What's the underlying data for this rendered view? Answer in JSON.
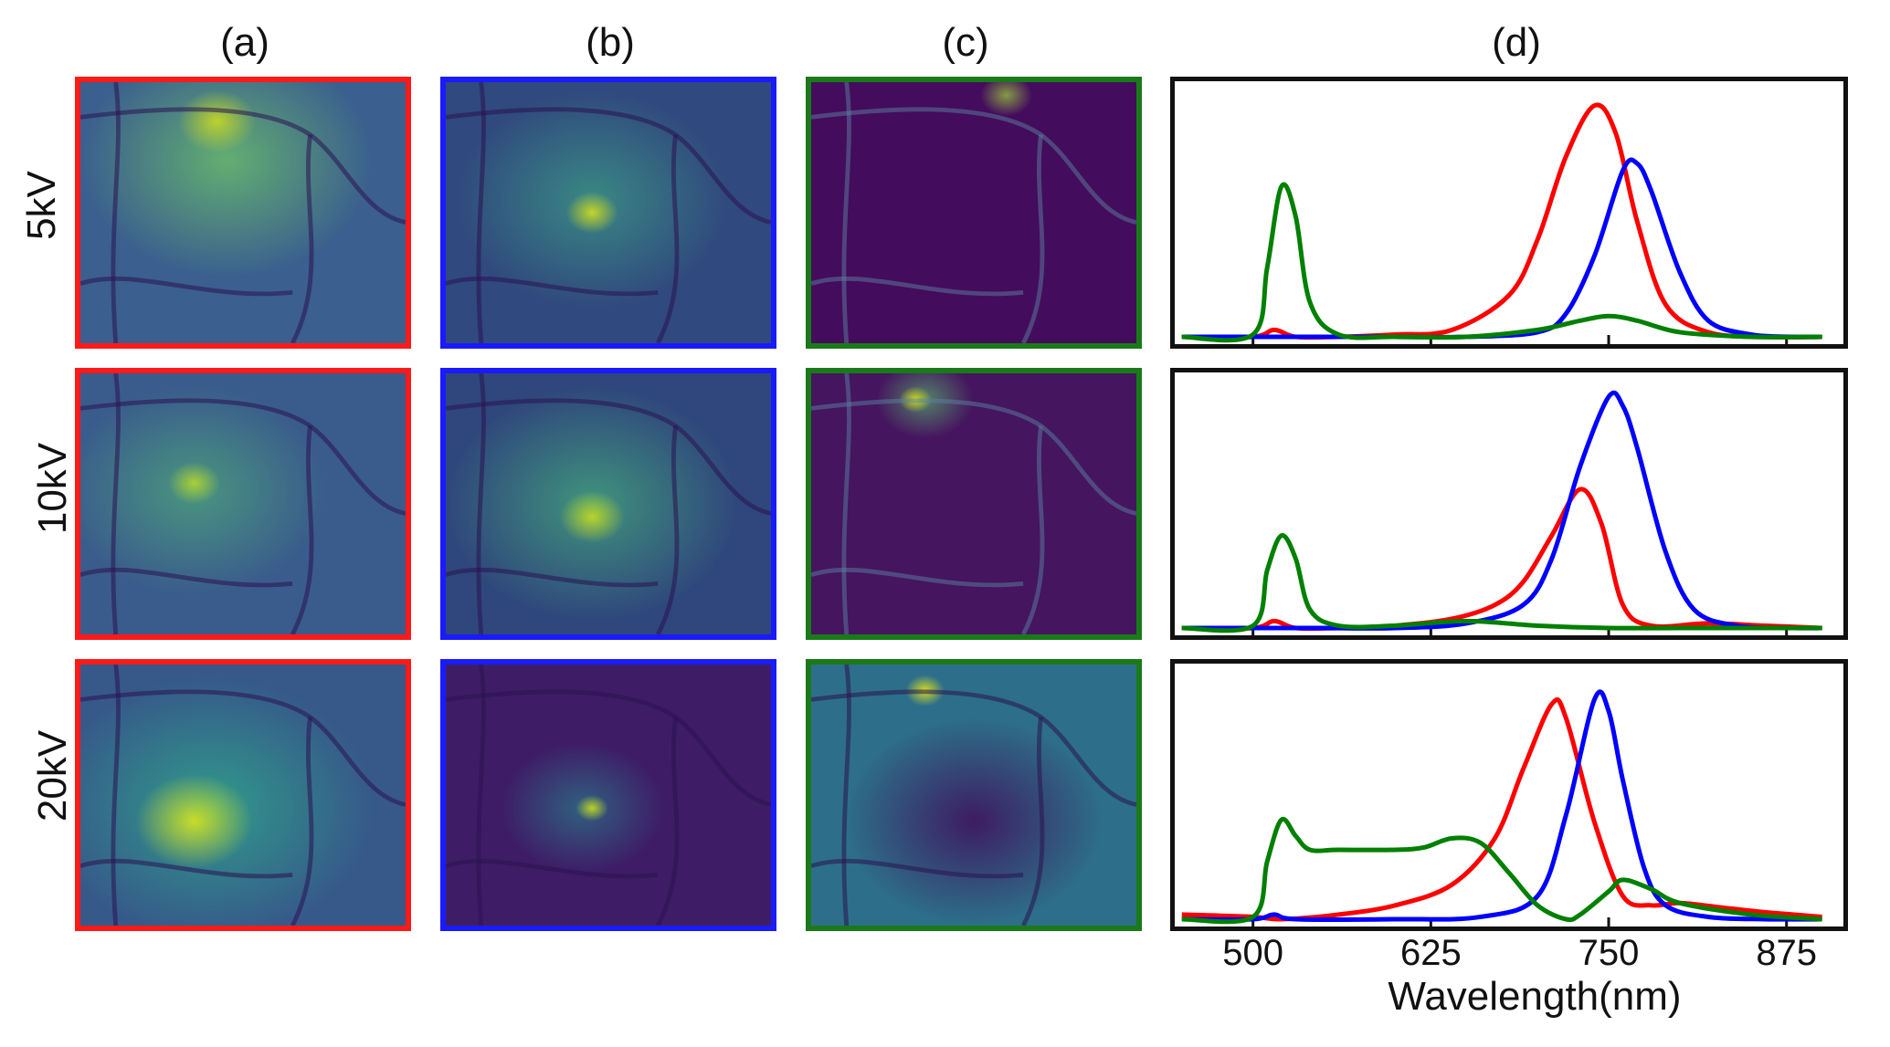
{
  "columns": [
    "(a)",
    "(b)",
    "(c)",
    "(d)"
  ],
  "rows": [
    "5kV",
    "10kV",
    "20kV"
  ],
  "panel_colors": {
    "a": "#ff1a1a",
    "b": "#1a1aff",
    "c": "#1a7a1a"
  },
  "colormap": "viridis",
  "chart_data": {
    "type": "line",
    "xlabel": "Wavelength(nm)",
    "xticks": [
      500,
      625,
      750,
      875
    ],
    "xlim": [
      445,
      915
    ],
    "ylim": [
      0,
      1.05
    ],
    "yticks_visible": false,
    "panels": [
      {
        "row": "5kV",
        "series": [
          {
            "color": "#ff0000",
            "x": [
              450,
              500,
              515,
              530,
              560,
              600,
              640,
              680,
              700,
              720,
              740,
              755,
              770,
              790,
              820,
              860,
              900
            ],
            "y": [
              0.0,
              0.0,
              0.03,
              0.0,
              0.0,
              0.01,
              0.03,
              0.18,
              0.42,
              0.78,
              1.0,
              0.88,
              0.5,
              0.14,
              0.02,
              0.0,
              0.0
            ]
          },
          {
            "color": "#0000ff",
            "x": [
              450,
              500,
              550,
              600,
              650,
              700,
              720,
              740,
              760,
              770,
              780,
              800,
              820,
              850,
              880,
              900
            ],
            "y": [
              0.0,
              0.0,
              0.0,
              0.0,
              0.0,
              0.02,
              0.1,
              0.35,
              0.72,
              0.75,
              0.63,
              0.28,
              0.07,
              0.01,
              0.0,
              0.0
            ]
          },
          {
            "color": "#008000",
            "x": [
              450,
              500,
              510,
              520,
              530,
              540,
              560,
              600,
              650,
              700,
              730,
              750,
              770,
              800,
              850,
              900
            ],
            "y": [
              0.0,
              0.01,
              0.3,
              0.65,
              0.52,
              0.15,
              0.01,
              0.0,
              0.0,
              0.03,
              0.07,
              0.09,
              0.07,
              0.02,
              0.0,
              0.0
            ]
          }
        ]
      },
      {
        "row": "10kV",
        "series": [
          {
            "color": "#ff0000",
            "x": [
              450,
              500,
              515,
              530,
              560,
              600,
              640,
              670,
              690,
              710,
              730,
              745,
              760,
              780,
              820,
              860,
              900
            ],
            "y": [
              0.0,
              0.0,
              0.03,
              0.0,
              0.0,
              0.01,
              0.04,
              0.1,
              0.2,
              0.4,
              0.6,
              0.45,
              0.1,
              0.01,
              0.02,
              0.01,
              0.0
            ]
          },
          {
            "color": "#0000ff",
            "x": [
              450,
              500,
              550,
              600,
              650,
              690,
              710,
              730,
              750,
              760,
              770,
              790,
              810,
              840,
              880,
              900
            ],
            "y": [
              0.0,
              0.0,
              0.0,
              0.0,
              0.02,
              0.1,
              0.3,
              0.7,
              1.0,
              0.96,
              0.78,
              0.33,
              0.08,
              0.01,
              0.0,
              0.0
            ]
          },
          {
            "color": "#008000",
            "x": [
              450,
              500,
              510,
              520,
              530,
              540,
              560,
              600,
              650,
              700,
              750,
              800,
              900
            ],
            "y": [
              0.0,
              0.01,
              0.25,
              0.4,
              0.3,
              0.08,
              0.01,
              0.01,
              0.03,
              0.01,
              0.0,
              0.0,
              0.0
            ]
          }
        ]
      },
      {
        "row": "20kV",
        "series": [
          {
            "color": "#ff0000",
            "x": [
              450,
              500,
              520,
              560,
              600,
              640,
              670,
              690,
              710,
              720,
              740,
              760,
              780,
              800,
              830,
              860,
              900
            ],
            "y": [
              0.02,
              0.01,
              0.0,
              0.02,
              0.06,
              0.15,
              0.35,
              0.65,
              0.93,
              0.87,
              0.42,
              0.1,
              0.06,
              0.07,
              0.05,
              0.03,
              0.01
            ]
          },
          {
            "color": "#0000ff",
            "x": [
              450,
              500,
              515,
              530,
              600,
              660,
              700,
              720,
              740,
              750,
              760,
              775,
              790,
              820,
              860,
              900
            ],
            "y": [
              0.0,
              0.0,
              0.02,
              0.0,
              0.0,
              0.01,
              0.1,
              0.45,
              0.95,
              0.9,
              0.6,
              0.22,
              0.06,
              0.01,
              0.0,
              0.0
            ]
          },
          {
            "color": "#008000",
            "x": [
              450,
              500,
              510,
              520,
              530,
              540,
              560,
              600,
              620,
              640,
              660,
              680,
              700,
              720,
              730,
              750,
              760,
              780,
              800,
              850,
              900
            ],
            "y": [
              0.0,
              0.01,
              0.25,
              0.43,
              0.36,
              0.3,
              0.3,
              0.3,
              0.31,
              0.35,
              0.33,
              0.2,
              0.06,
              0.0,
              0.02,
              0.12,
              0.17,
              0.13,
              0.07,
              0.02,
              0.0
            ]
          }
        ]
      }
    ]
  }
}
